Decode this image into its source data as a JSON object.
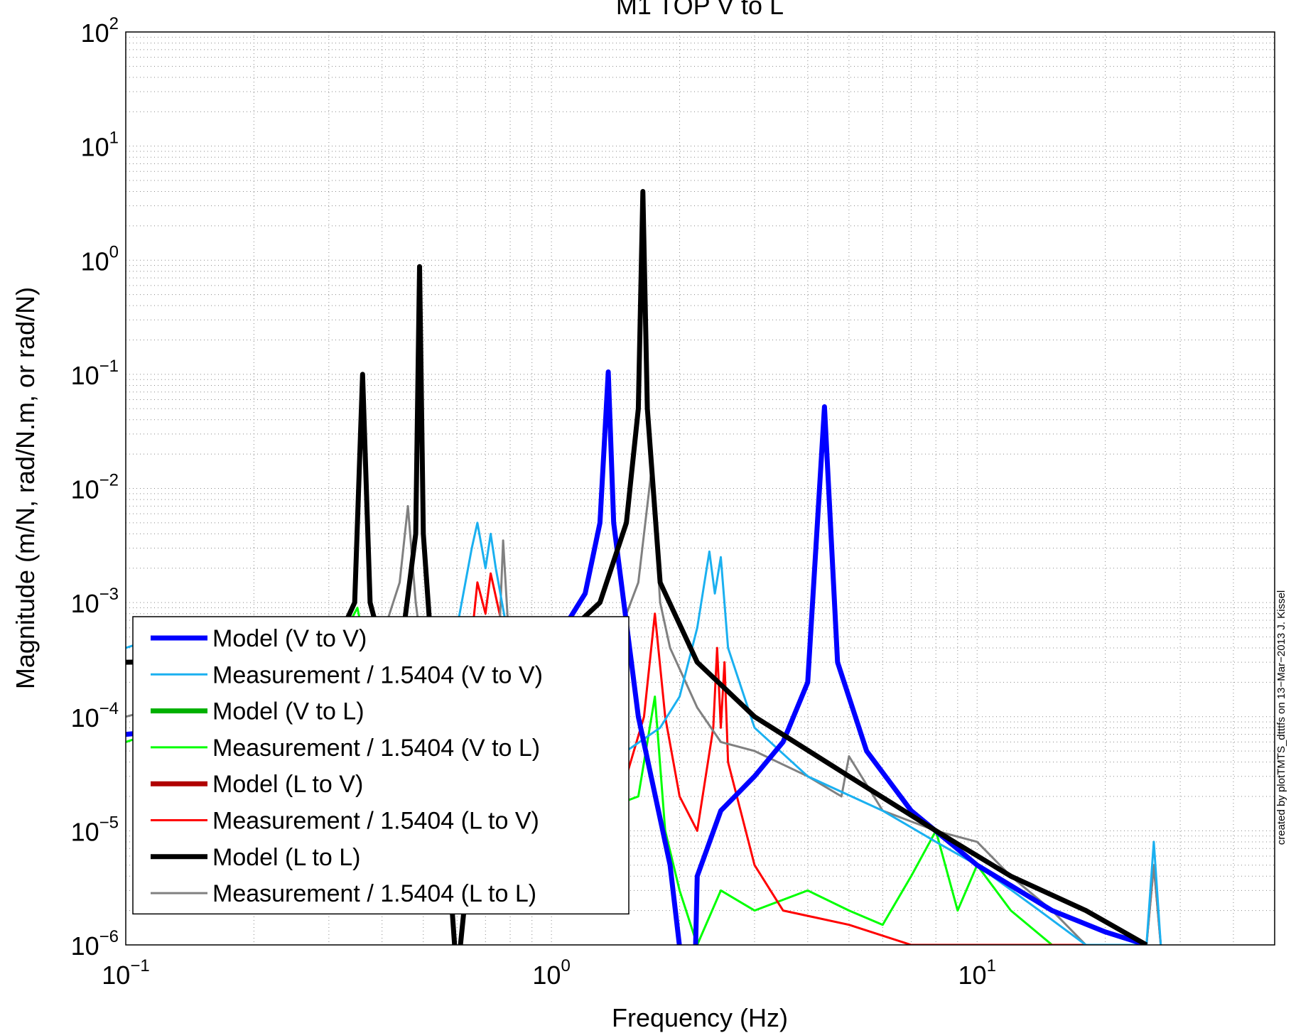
{
  "chart_data": {
    "type": "line",
    "title": "M1 TOP V to L",
    "xlabel": "Frequency (Hz)",
    "ylabel": "Magnitude (m/N, rad/N.m, or rad/N)",
    "xscale": "log",
    "yscale": "log",
    "xlim": [
      0.1,
      50
    ],
    "ylim": [
      1e-06,
      100
    ],
    "grid": "on",
    "legend_position": "bottom-left",
    "x_ticks": [
      {
        "value": 0.1,
        "base": "10",
        "exp": "−1"
      },
      {
        "value": 1,
        "base": "10",
        "exp": "0"
      },
      {
        "value": 10,
        "base": "10",
        "exp": "1"
      }
    ],
    "y_ticks": [
      {
        "value": 1e-06,
        "base": "10",
        "exp": "−6"
      },
      {
        "value": 1e-05,
        "base": "10",
        "exp": "−5"
      },
      {
        "value": 0.0001,
        "base": "10",
        "exp": "−4"
      },
      {
        "value": 0.001,
        "base": "10",
        "exp": "−3"
      },
      {
        "value": 0.01,
        "base": "10",
        "exp": "−2"
      },
      {
        "value": 0.1,
        "base": "10",
        "exp": "−1"
      },
      {
        "value": 1,
        "base": "10",
        "exp": "0"
      },
      {
        "value": 10,
        "base": "10",
        "exp": "1"
      },
      {
        "value": 100,
        "base": "10",
        "exp": "2"
      }
    ],
    "annotation": "created by plotTMTS_dtttfs on 13−Mar−2013 J. Kissel",
    "series": [
      {
        "name": "Model (V to V)",
        "color": "#0000ff",
        "style": "thick",
        "x": [
          0.1,
          0.3,
          0.6,
          1.0,
          1.2,
          1.3,
          1.36,
          1.4,
          1.6,
          1.9,
          2.1,
          2.15,
          2.2,
          2.5,
          3.0,
          3.5,
          4.0,
          4.38,
          4.7,
          5.5,
          7,
          10,
          15,
          20,
          25
        ],
        "y": [
          7e-05,
          0.0001,
          0.00015,
          0.0004,
          0.0012,
          0.005,
          0.105,
          0.005,
          0.0001,
          5e-06,
          2e-07,
          1e-07,
          4e-06,
          1.5e-05,
          3e-05,
          6e-05,
          0.0002,
          0.052,
          0.0003,
          5e-05,
          1.5e-05,
          5e-06,
          2e-06,
          1.3e-06,
          1e-06
        ]
      },
      {
        "name": "Measurement / 1.5404 (V to V)",
        "color": "#1ab0f0",
        "style": "thin",
        "x": [
          0.1,
          0.12,
          0.2,
          0.3,
          0.4,
          0.5,
          0.6,
          0.65,
          0.67,
          0.7,
          0.72,
          0.74,
          0.8,
          1.0,
          1.2,
          1.5,
          1.8,
          2.0,
          2.2,
          2.35,
          2.42,
          2.5,
          2.6,
          3.0,
          4.0,
          6.0,
          8.0,
          10,
          14,
          18,
          25,
          26,
          27
        ],
        "y": [
          0.0004,
          0.0005,
          0.0003,
          0.0003,
          0.0004,
          0.00035,
          0.0006,
          0.003,
          0.005,
          0.002,
          0.004,
          0.002,
          0.0004,
          0.0001,
          4e-05,
          5e-05,
          8e-05,
          0.00015,
          0.0006,
          0.0028,
          0.0012,
          0.0025,
          0.0004,
          8e-05,
          3e-05,
          1.5e-05,
          8e-06,
          5e-06,
          2e-06,
          1e-06,
          1e-06,
          8e-06,
          1e-06
        ]
      },
      {
        "name": "Model (V to L)",
        "color": "#00b000",
        "style": "thick",
        "x": [],
        "y": []
      },
      {
        "name": "Measurement / 1.5404 (V to L)",
        "color": "#00ff00",
        "style": "thin",
        "x": [
          0.1,
          0.15,
          0.2,
          0.3,
          0.35,
          0.38,
          0.4,
          0.45,
          0.47,
          0.5,
          0.7,
          1.0,
          1.3,
          1.6,
          1.75,
          1.85,
          2.0,
          2.2,
          2.5,
          3.0,
          4.0,
          5.0,
          6.0,
          7.0,
          8.0,
          9.0,
          10,
          12,
          15
        ],
        "y": [
          6e-05,
          0.0001,
          0.0002,
          0.0003,
          0.0009,
          0.0002,
          0.0003,
          0.0007,
          0.0003,
          0.0002,
          0.0001,
          5e-05,
          1.5e-05,
          2e-05,
          0.00015,
          1e-05,
          3e-06,
          1e-06,
          3e-06,
          2e-06,
          3e-06,
          2e-06,
          1.5e-06,
          4e-06,
          1e-05,
          2e-06,
          5e-06,
          2e-06,
          1e-06
        ]
      },
      {
        "name": "Model (L to V)",
        "color": "#b00000",
        "style": "thick",
        "x": [],
        "y": []
      },
      {
        "name": "Measurement / 1.5404 (L to V)",
        "color": "#ff0000",
        "style": "thin",
        "x": [
          0.65,
          0.67,
          0.7,
          0.72,
          0.75,
          0.8,
          1.2,
          1.5,
          1.65,
          1.75,
          1.85,
          2.0,
          2.2,
          2.4,
          2.45,
          2.5,
          2.55,
          2.6,
          3.0,
          3.5,
          5.0,
          7.0,
          10,
          15,
          25,
          26,
          27
        ],
        "y": [
          0.0005,
          0.0015,
          0.0008,
          0.0018,
          0.0009,
          0.0003,
          2e-05,
          3e-05,
          0.0001,
          0.0008,
          0.0001,
          2e-05,
          1e-05,
          8e-05,
          0.0004,
          8e-05,
          0.0003,
          4e-05,
          5e-06,
          2e-06,
          1.5e-06,
          1e-06,
          1e-06,
          1e-06,
          1e-06,
          5e-06,
          1e-06
        ]
      },
      {
        "name": "Model (L to L)",
        "color": "#000000",
        "style": "thick",
        "x": [
          0.1,
          0.3,
          0.345,
          0.36,
          0.375,
          0.4,
          0.45,
          0.48,
          0.49,
          0.5,
          0.52,
          0.55,
          0.6,
          0.7,
          1.0,
          1.3,
          1.5,
          1.6,
          1.64,
          1.68,
          1.8,
          2.2,
          3.0,
          5.0,
          8.0,
          12,
          18,
          25
        ],
        "y": [
          0.0003,
          0.00032,
          0.001,
          0.1,
          0.001,
          0.0004,
          0.0006,
          0.004,
          0.88,
          0.004,
          0.0005,
          5e-05,
          5e-07,
          0.00015,
          0.0004,
          0.001,
          0.005,
          0.05,
          4,
          0.05,
          0.0015,
          0.0003,
          0.0001,
          3e-05,
          1e-05,
          4e-06,
          2e-06,
          1e-06
        ]
      },
      {
        "name": "Measurement / 1.5404 (L to L)",
        "color": "#808080",
        "style": "thin",
        "x": [
          0.1,
          0.2,
          0.3,
          0.4,
          0.44,
          0.46,
          0.48,
          0.5,
          0.55,
          0.6,
          0.7,
          0.75,
          0.77,
          0.8,
          1.0,
          1.4,
          1.6,
          1.72,
          1.8,
          1.9,
          2.2,
          2.5,
          3.0,
          4.0,
          4.8,
          5.0,
          6.0,
          8.0,
          10,
          12,
          15,
          18,
          25,
          26,
          27
        ],
        "y": [
          0.0001,
          0.0002,
          0.0003,
          0.0005,
          0.0015,
          0.007,
          0.001,
          0.0003,
          0.0002,
          0.00015,
          0.0002,
          0.0003,
          0.0035,
          0.0003,
          0.0001,
          0.0004,
          0.0015,
          0.015,
          0.001,
          0.0004,
          0.00012,
          6e-05,
          5e-05,
          3e-05,
          2e-05,
          4.5e-05,
          1.5e-05,
          1e-05,
          8e-06,
          4e-06,
          2e-06,
          1e-06,
          1e-06,
          5e-06,
          1e-06
        ]
      }
    ]
  }
}
